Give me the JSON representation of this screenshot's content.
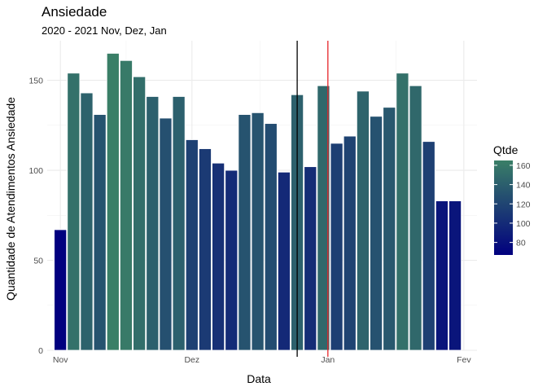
{
  "chart_data": {
    "type": "bar",
    "title": "Ansiedade",
    "subtitle": "2020 - 2021 Nov, Dez, Jan",
    "xlabel": "Data",
    "ylabel": "Quantidade de Atendimentos Ansiedade",
    "x_tick_labels": [
      "Nov",
      "Dez",
      "Jan",
      "Fev"
    ],
    "x_tick_dates": [
      "2020-11-01",
      "2020-12-01",
      "2021-01-01",
      "2021-02-01"
    ],
    "y_ticks": [
      0,
      50,
      100,
      150
    ],
    "ylim": [
      0,
      172
    ],
    "xlim": [
      "2020-10-29",
      "2021-02-04"
    ],
    "bar_width_days": 2.8,
    "dates": [
      "2020-11-01",
      "2020-11-04",
      "2020-11-07",
      "2020-11-10",
      "2020-11-13",
      "2020-11-16",
      "2020-11-19",
      "2020-11-22",
      "2020-11-25",
      "2020-11-28",
      "2020-12-01",
      "2020-12-04",
      "2020-12-07",
      "2020-12-10",
      "2020-12-13",
      "2020-12-16",
      "2020-12-19",
      "2020-12-22",
      "2020-12-25",
      "2020-12-28",
      "2020-12-31",
      "2021-01-03",
      "2021-01-06",
      "2021-01-09",
      "2021-01-12",
      "2021-01-15",
      "2021-01-18",
      "2021-01-21",
      "2021-01-24",
      "2021-01-27",
      "2021-01-30"
    ],
    "values": [
      67,
      154,
      143,
      131,
      165,
      161,
      152,
      141,
      129,
      141,
      117,
      112,
      104,
      100,
      131,
      132,
      126,
      99,
      142,
      102,
      147,
      115,
      119,
      144,
      130,
      135,
      154,
      147,
      116,
      83,
      83
    ],
    "vlines": [
      {
        "date": "2020-12-25",
        "color": "#000000"
      },
      {
        "date": "2021-01-01",
        "color": "#e8262a"
      }
    ],
    "legend": {
      "title": "Qtde",
      "position": "right",
      "ticks": [
        80,
        100,
        120,
        140,
        160
      ],
      "range": [
        67,
        165
      ],
      "color_low": "#01007f",
      "color_high": "#3a7f67"
    },
    "grid": true
  }
}
